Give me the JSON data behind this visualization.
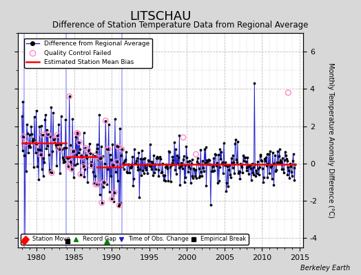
{
  "title": "LITSCHAU",
  "subtitle": "Difference of Station Temperature Data from Regional Average",
  "ylabel_right": "Monthly Temperature Anomaly Difference (°C)",
  "xlim": [
    1977.5,
    2015.5
  ],
  "ylim": [
    -4.5,
    7.0
  ],
  "yticks": [
    -4,
    -2,
    0,
    2,
    4,
    6
  ],
  "xticks": [
    1980,
    1985,
    1990,
    1995,
    2000,
    2005,
    2010,
    2015
  ],
  "background_color": "#d8d8d8",
  "plot_bg_color": "#ffffff",
  "grid_color": "#bbbbbb",
  "line_color": "#2222cc",
  "qc_edge_color": "#ff88cc",
  "bias_color": "#ff0000",
  "title_fontsize": 13,
  "subtitle_fontsize": 8.5,
  "watermark": "Berkeley Earth",
  "segments": [
    {
      "x_start": 1978.0,
      "x_end": 1983.9,
      "bias": 1.1
    },
    {
      "x_start": 1983.9,
      "x_end": 1988.0,
      "bias": 0.35
    },
    {
      "x_start": 1988.0,
      "x_end": 1991.3,
      "bias": -0.18
    },
    {
      "x_start": 1991.3,
      "x_end": 2014.5,
      "bias": -0.05
    }
  ],
  "vert_lines": [
    {
      "x": 1978.3,
      "y_bot": -4.5,
      "y_top": 7.0
    },
    {
      "x": 1983.9,
      "y_bot": -4.5,
      "y_top": 7.0
    },
    {
      "x": 1991.3,
      "y_bot": -4.5,
      "y_top": 7.0
    }
  ],
  "station_moves": [
    1978.3
  ],
  "record_gaps": [
    1989.3
  ],
  "empirical_breaks": [
    1984.1
  ],
  "time_obs_changes": []
}
